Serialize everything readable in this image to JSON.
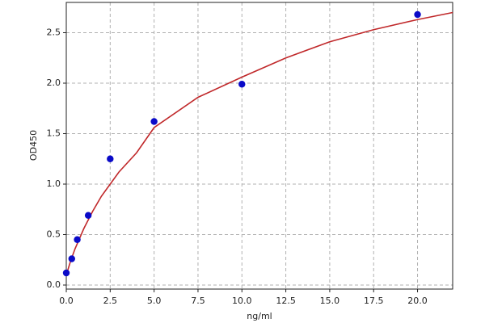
{
  "chart_data": {
    "type": "scatter",
    "x_label": "ng/ml",
    "y_label": "OD450",
    "xlim": [
      0,
      22
    ],
    "ylim": [
      -0.04,
      2.8
    ],
    "xticks": [
      {
        "value": 0,
        "label": "0.0"
      },
      2.5,
      {
        "value": 5,
        "label": "5.0"
      },
      7.5,
      {
        "value": 10,
        "label": "10.0"
      },
      12.5,
      {
        "value": 15,
        "label": "15.0"
      },
      17.5,
      {
        "value": 20,
        "label": "20.0"
      }
    ],
    "yticks": [
      {
        "value": 0,
        "label": "0.0"
      },
      0.5,
      {
        "value": 1,
        "label": "1.0"
      },
      1.5,
      {
        "value": 2,
        "label": "2.0"
      },
      2.5
    ],
    "grid": true,
    "series": [
      {
        "type": "scatter",
        "color": "#0a0ac8",
        "x": [
          0,
          0.3125,
          0.625,
          1.25,
          2.5,
          5,
          10,
          20
        ],
        "values": [
          0.12,
          0.26,
          0.45,
          0.69,
          1.25,
          1.62,
          1.99,
          2.68
        ]
      },
      {
        "type": "line",
        "color": "#c0282a",
        "x": [
          0,
          0.25,
          0.5,
          1,
          1.5,
          2,
          3,
          4,
          5,
          7.5,
          10,
          12.5,
          15,
          17.5,
          20,
          22
        ],
        "values": [
          0.1,
          0.24,
          0.36,
          0.56,
          0.73,
          0.88,
          1.12,
          1.31,
          1.56,
          1.86,
          2.06,
          2.25,
          2.41,
          2.53,
          2.63,
          2.7
        ]
      }
    ]
  }
}
